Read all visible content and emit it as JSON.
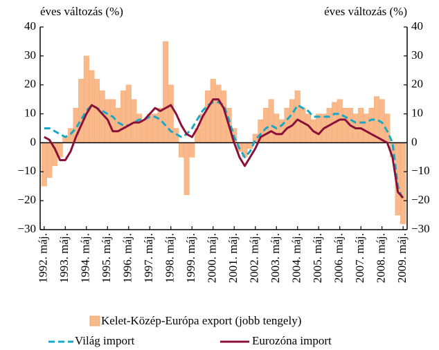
{
  "chart_data": {
    "type": "combo",
    "left_axis_label": "éves változás (%)",
    "right_axis_label": "éves változás (%)",
    "categories": [
      "1992. máj.",
      null,
      null,
      null,
      "1993. máj.",
      null,
      null,
      null,
      "1994. máj.",
      null,
      null,
      null,
      "1995. máj.",
      null,
      null,
      null,
      "1996. máj.",
      null,
      null,
      null,
      "1997. máj.",
      null,
      null,
      null,
      "1998. máj.",
      null,
      null,
      null,
      "1999. máj.",
      null,
      null,
      null,
      "2000. máj.",
      null,
      null,
      null,
      "2001. máj.",
      null,
      null,
      null,
      "2002. máj.",
      null,
      null,
      null,
      "2003. máj.",
      null,
      null,
      null,
      "2004. máj.",
      null,
      null,
      null,
      "2005. máj.",
      null,
      null,
      null,
      "2006. máj.",
      null,
      null,
      null,
      "2007. máj.",
      null,
      null,
      null,
      "2008. máj.",
      null,
      null,
      null,
      "2009. máj."
    ],
    "series": [
      {
        "name": "Kelet-Közép-Európa export (jobb tengely)",
        "type": "bar",
        "axis": "y2",
        "color": "#f9b98a",
        "values": [
          -15,
          -12,
          -8,
          -5,
          2,
          5,
          12,
          22,
          30,
          25,
          22,
          18,
          15,
          15,
          12,
          18,
          20,
          15,
          10,
          8,
          10,
          10,
          12,
          35,
          20,
          5,
          -5,
          -18,
          -5,
          5,
          10,
          18,
          22,
          20,
          18,
          12,
          5,
          -3,
          -5,
          -2,
          3,
          8,
          12,
          15,
          10,
          8,
          12,
          15,
          18,
          12,
          10,
          8,
          10,
          10,
          12,
          14,
          15,
          12,
          12,
          10,
          12,
          10,
          12,
          16,
          15,
          10,
          -5,
          -25,
          -28
        ]
      },
      {
        "name": "Világ import",
        "type": "line",
        "dashed": true,
        "color": "#1aa7c6",
        "values": [
          5,
          5,
          4,
          3,
          2,
          3,
          5,
          8,
          11,
          13,
          12,
          11,
          10,
          9,
          7,
          6,
          6,
          7,
          8,
          8,
          9,
          9,
          8,
          6,
          4,
          3,
          2,
          3,
          5,
          8,
          11,
          13,
          14,
          14,
          13,
          8,
          2,
          -2,
          -5,
          -3,
          1,
          3,
          5,
          6,
          5,
          6,
          8,
          10,
          13,
          12,
          11,
          9,
          9,
          9,
          9,
          10,
          10,
          9,
          8,
          7,
          7,
          7,
          8,
          8,
          7,
          4,
          0,
          -15,
          -20
        ]
      },
      {
        "name": "Eurozóna import",
        "type": "line",
        "dashed": false,
        "color": "#8b1038",
        "values": [
          2,
          1,
          -2,
          -6,
          -6,
          -3,
          2,
          6,
          10,
          13,
          12,
          10,
          8,
          4,
          4,
          5,
          6,
          7,
          7,
          8,
          10,
          12,
          11,
          12,
          13,
          10,
          6,
          3,
          2,
          5,
          9,
          12,
          15,
          15,
          12,
          6,
          0,
          -5,
          -8,
          -5,
          -2,
          2,
          3,
          4,
          3,
          3,
          5,
          6,
          8,
          7,
          6,
          4,
          3,
          5,
          6,
          7,
          8,
          8,
          6,
          5,
          5,
          4,
          3,
          2,
          1,
          0,
          -5,
          -17,
          -19
        ]
      }
    ],
    "ylim": [
      -30,
      40
    ],
    "yticks": [
      {
        "value": -30,
        "label": "−30"
      },
      {
        "value": -20,
        "label": "−20"
      },
      {
        "value": -10,
        "label": "−10"
      },
      0,
      10,
      20,
      30,
      40
    ],
    "y2lim": [
      -30,
      40
    ],
    "y2ticks": [
      {
        "value": -30,
        "label": "−30"
      },
      {
        "value": -20,
        "label": "−20"
      },
      {
        "value": -10,
        "label": "−10"
      },
      0,
      10,
      20,
      30,
      40
    ]
  }
}
